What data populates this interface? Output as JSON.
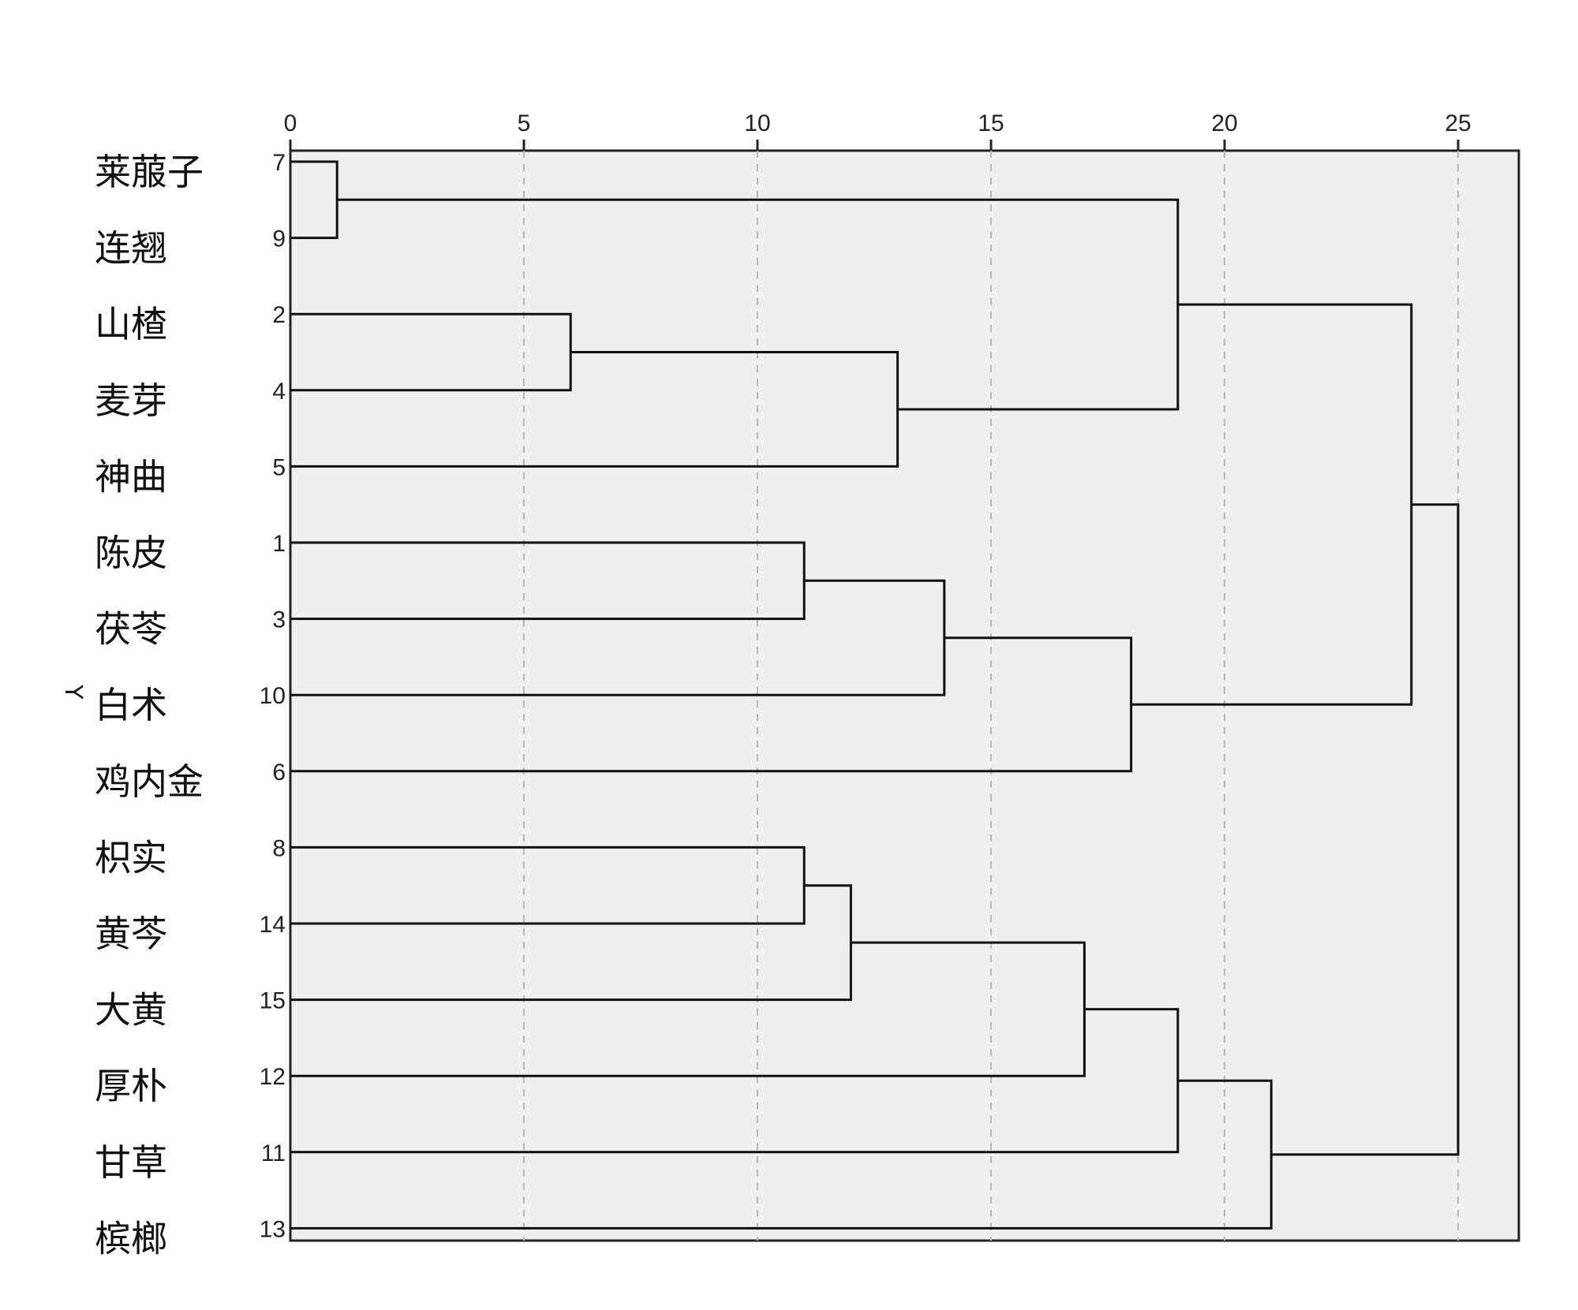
{
  "chart_data": {
    "type": "dendrogram",
    "orientation": "horizontal",
    "ylabel": "Y",
    "xlim": [
      0,
      26.3
    ],
    "x_ticks": [
      0,
      5,
      10,
      15,
      20,
      25
    ],
    "grid": "vertical dashed",
    "leaves": [
      {
        "id": 7,
        "name": "莱菔子"
      },
      {
        "id": 9,
        "name": "连翘"
      },
      {
        "id": 2,
        "name": "山楂"
      },
      {
        "id": 4,
        "name": "麦芽"
      },
      {
        "id": 5,
        "name": "神曲"
      },
      {
        "id": 1,
        "name": "陈皮"
      },
      {
        "id": 3,
        "name": "茯苓"
      },
      {
        "id": 10,
        "name": "白术"
      },
      {
        "id": 6,
        "name": "鸡内金"
      },
      {
        "id": 8,
        "name": "枳实"
      },
      {
        "id": 14,
        "name": "黄芩"
      },
      {
        "id": 15,
        "name": "大黄"
      },
      {
        "id": 12,
        "name": "厚朴"
      },
      {
        "id": 11,
        "name": "甘草"
      },
      {
        "id": 13,
        "name": "槟榔"
      }
    ],
    "merges": [
      {
        "id": "A",
        "left": 7,
        "right": 9,
        "height": 1
      },
      {
        "id": "B",
        "left": 2,
        "right": 4,
        "height": 6
      },
      {
        "id": "C",
        "left": "B",
        "right": 5,
        "height": 13
      },
      {
        "id": "D",
        "left": "A",
        "right": "C",
        "height": 19
      },
      {
        "id": "E",
        "left": 1,
        "right": 3,
        "height": 11
      },
      {
        "id": "F",
        "left": "E",
        "right": 10,
        "height": 14
      },
      {
        "id": "G",
        "left": "F",
        "right": 6,
        "height": 18
      },
      {
        "id": "H",
        "left": "D",
        "right": "G",
        "height": 24
      },
      {
        "id": "I",
        "left": 8,
        "right": 14,
        "height": 11
      },
      {
        "id": "J",
        "left": "I",
        "right": 15,
        "height": 12
      },
      {
        "id": "K",
        "left": "J",
        "right": 12,
        "height": 17
      },
      {
        "id": "L",
        "left": "K",
        "right": 11,
        "height": 19
      },
      {
        "id": "M",
        "left": "L",
        "right": 13,
        "height": 21
      },
      {
        "id": "N",
        "left": "H",
        "right": "M",
        "height": 25
      }
    ]
  }
}
